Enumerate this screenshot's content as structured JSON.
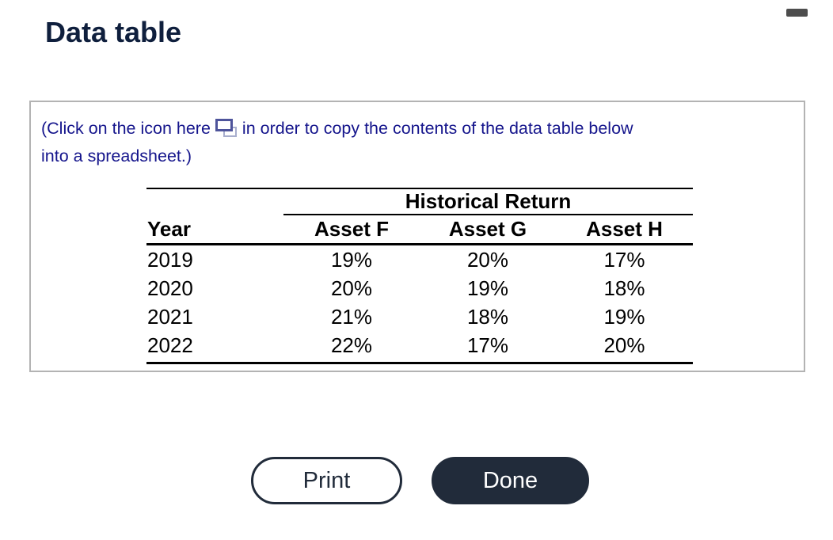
{
  "page": {
    "title": "Data table"
  },
  "colors": {
    "title_text": "#0f1f3d",
    "instruction_text": "#15158c",
    "panel_border": "#b3b3b3",
    "button_dark": "#212b3a",
    "copy_icon_front": "#4e549b",
    "copy_icon_back": "#a8aecd",
    "scrollbar_thumb": "#4d4d4d",
    "table_rule": "#000000"
  },
  "icons": {
    "copy": "copy-to-spreadsheet-icon",
    "scrollbar": "scrollbar-thumb"
  },
  "panel": {
    "instruction": {
      "part1": "(Click on the icon here",
      "part2": "in order to copy the contents of the data table below",
      "part3": "into a spreadsheet.)"
    },
    "table": {
      "spanning_header": "Historical Return",
      "columns": [
        "Year",
        "Asset F",
        "Asset G",
        "Asset H"
      ],
      "rows": [
        [
          "2019",
          "19%",
          "20%",
          "17%"
        ],
        [
          "2020",
          "20%",
          "19%",
          "18%"
        ],
        [
          "2021",
          "21%",
          "18%",
          "19%"
        ],
        [
          "2022",
          "22%",
          "17%",
          "20%"
        ]
      ]
    }
  },
  "buttons": {
    "print": "Print",
    "done": "Done"
  }
}
